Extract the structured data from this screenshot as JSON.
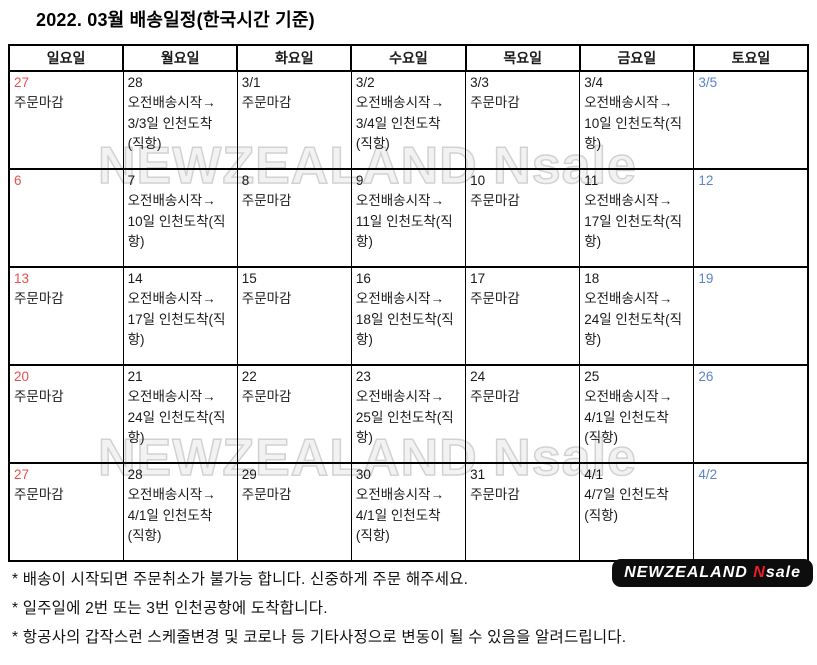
{
  "title": "2022. 03월 배송일정(한국시간 기준)",
  "colors": {
    "sunday_red": "#e9504d",
    "saturday_blue": "#5b84c8",
    "text": "#1a1a1a",
    "watermark": "#d2d2d2",
    "logo_bg": "#0d0d0d",
    "logo_accent": "#ee1c25"
  },
  "watermark": {
    "text": "NEWZEALAND Nsale"
  },
  "logo": {
    "part1": "NEWZEALAND",
    "accent": "N",
    "part2": "sale"
  },
  "calendar": {
    "day_headers": [
      {
        "label": "일요일",
        "color": "red"
      },
      {
        "label": "월요일",
        "color": "black"
      },
      {
        "label": "화요일",
        "color": "black"
      },
      {
        "label": "수요일",
        "color": "black"
      },
      {
        "label": "목요일",
        "color": "black"
      },
      {
        "label": "금요일",
        "color": "black"
      },
      {
        "label": "토요일",
        "color": "blue"
      }
    ],
    "weeks": [
      [
        {
          "date": "27",
          "color": "red",
          "text": "주문마감"
        },
        {
          "date": "28",
          "color": "black",
          "text": "오전배송시작→\n3/3일 인천도착\n(직항)"
        },
        {
          "date": "3/1",
          "color": "black",
          "text": "주문마감"
        },
        {
          "date": "3/2",
          "color": "black",
          "text": "오전배송시작→\n3/4일 인천도착\n(직항)"
        },
        {
          "date": "3/3",
          "color": "black",
          "text": "주문마감"
        },
        {
          "date": "3/4",
          "color": "black",
          "text": "오전배송시작→\n10일 인천도착(직\n항)"
        },
        {
          "date": "3/5",
          "color": "blue",
          "text": ""
        }
      ],
      [
        {
          "date": "6",
          "color": "red",
          "text": ""
        },
        {
          "date": "7",
          "color": "black",
          "text": "오전배송시작→\n10일 인천도착(직\n항)"
        },
        {
          "date": "8",
          "color": "black",
          "text": "주문마감"
        },
        {
          "date": "9",
          "color": "black",
          "text": "오전배송시작→\n11일 인천도착(직\n항)"
        },
        {
          "date": "10",
          "color": "black",
          "text": "주문마감"
        },
        {
          "date": "11",
          "color": "black",
          "text": "오전배송시작→\n17일 인천도착(직\n항)"
        },
        {
          "date": "12",
          "color": "blue",
          "text": ""
        }
      ],
      [
        {
          "date": "13",
          "color": "red",
          "text": "주문마감"
        },
        {
          "date": "14",
          "color": "black",
          "text": "오전배송시작→\n17일 인천도착(직\n항)"
        },
        {
          "date": "15",
          "color": "black",
          "text": "주문마감"
        },
        {
          "date": "16",
          "color": "black",
          "text": "오전배송시작→\n18일 인천도착(직\n항)"
        },
        {
          "date": "17",
          "color": "black",
          "text": "주문마감"
        },
        {
          "date": "18",
          "color": "black",
          "text": "오전배송시작→\n24일 인천도착(직\n항)"
        },
        {
          "date": "19",
          "color": "blue",
          "text": ""
        }
      ],
      [
        {
          "date": "20",
          "color": "red",
          "text": "주문마감"
        },
        {
          "date": "21",
          "color": "black",
          "text": "오전배송시작→\n24일 인천도착(직\n항)"
        },
        {
          "date": "22",
          "color": "black",
          "text": "주문마감"
        },
        {
          "date": "23",
          "color": "black",
          "text": "오전배송시작→\n25일 인천도착(직\n항)"
        },
        {
          "date": "24",
          "color": "black",
          "text": "주문마감"
        },
        {
          "date": "25",
          "color": "black",
          "text": "오전배송시작→\n4/1일 인천도착\n(직항)"
        },
        {
          "date": "26",
          "color": "blue",
          "text": ""
        }
      ],
      [
        {
          "date": "27",
          "color": "red",
          "text": "주문마감"
        },
        {
          "date": "28",
          "color": "black",
          "text": "오전배송시작→\n4/1일 인천도착\n(직항)"
        },
        {
          "date": "29",
          "color": "black",
          "text": "주문마감"
        },
        {
          "date": "30",
          "color": "black",
          "text": "오전배송시작→\n4/1일 인천도착\n(직항)"
        },
        {
          "date": "31",
          "color": "black",
          "text": "주문마감"
        },
        {
          "date": "4/1",
          "color": "black",
          "text": "4/7일 인천도착\n(직항)"
        },
        {
          "date": "4/2",
          "color": "blue",
          "text": ""
        }
      ]
    ]
  },
  "notes": [
    "* 배송이 시작되면 주문취소가 불가능 합니다. 신중하게 주문 해주세요.",
    "* 일주일에 2번 또는 3번 인천공항에 도착합니다.",
    "* 항공사의 갑작스런 스케줄변경 및 코로나 등 기타사정으로 변동이 될 수 있음을 알려드립니다."
  ]
}
